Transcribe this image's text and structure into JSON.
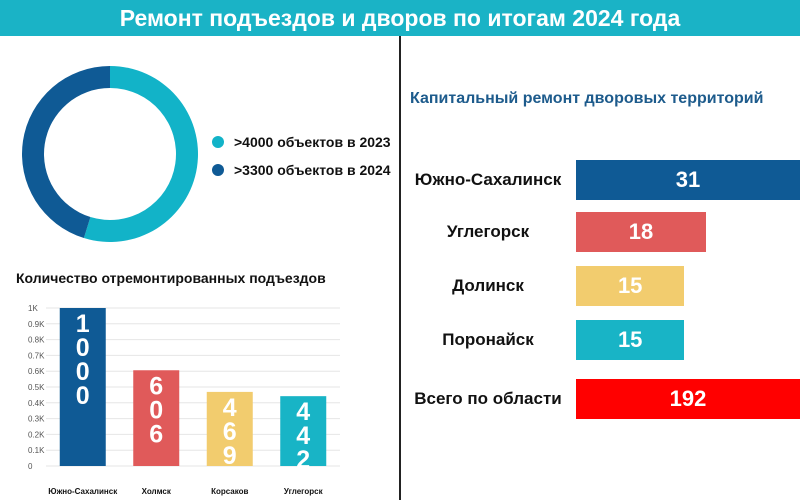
{
  "header": {
    "title": "Ремонт подъездов и дворов по итогам 2024 года"
  },
  "donut": {
    "legend": [
      {
        "label": ">4000 объектов в 2023",
        "value": 4000,
        "color": "#12b3c8"
      },
      {
        "label": ">3300 объектов в 2024",
        "value": 3300,
        "color": "#0f5a95"
      }
    ]
  },
  "chart_data": [
    {
      "type": "bar",
      "title": "Количество отремонтированных подъездов",
      "categories": [
        "Южно-Сахалинск",
        "Холмск",
        "Корсаков",
        "Углегорск"
      ],
      "values": [
        1000,
        606,
        469,
        442
      ],
      "colors": [
        "#0f5a95",
        "#e05a5a",
        "#f2cc6e",
        "#18b4c6"
      ],
      "ylim": [
        0,
        1000
      ],
      "yticks": [
        "0",
        "0.1K",
        "0.2K",
        "0.3K",
        "0.4K",
        "0.5K",
        "0.6K",
        "0.7K",
        "0.8K",
        "0.9K",
        "1K"
      ],
      "grid": true
    },
    {
      "type": "bar",
      "orientation": "horizontal",
      "title": "Капитальный ремонт дворовых территорий",
      "categories": [
        "Южно-Сахалинск",
        "Углегорск",
        "Долинск",
        "Поронайск",
        "Всего по области"
      ],
      "values": [
        31,
        18,
        15,
        15,
        192
      ],
      "colors": [
        "#0f5a95",
        "#e05a5a",
        "#f2cc6e",
        "#18b4c6",
        "#ff0000"
      ]
    }
  ]
}
